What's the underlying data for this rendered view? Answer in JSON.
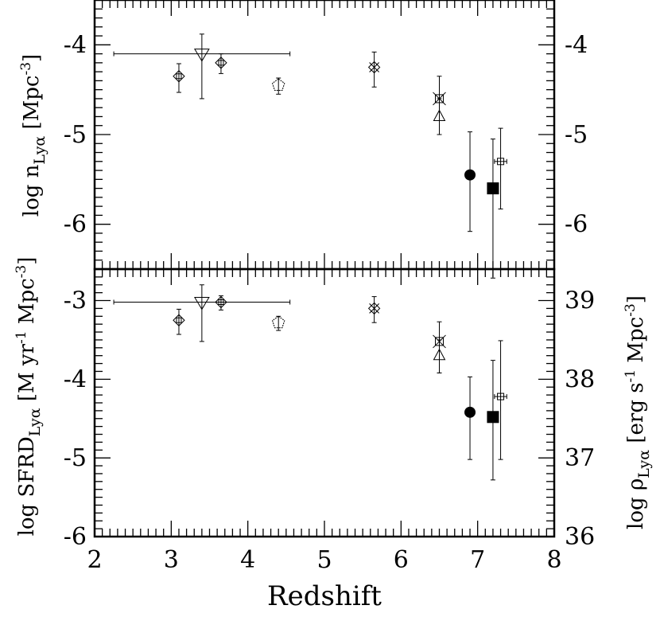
{
  "chart_data": [
    {
      "panel": "top",
      "type": "scatter",
      "xlim": [
        2,
        8
      ],
      "ylim": [
        -6.5,
        -3.5
      ],
      "yticks": [
        "-6",
        "-5",
        "-4"
      ],
      "ylabel": {
        "main": "log n",
        "sub": "Lyα",
        "unit": "[Mpc",
        "sup": "-3",
        "close": "]"
      },
      "right_ticks": [
        "-6",
        "-5",
        "-4"
      ],
      "points": [
        {
          "x": 3.1,
          "y": -4.35,
          "yerr": [
            0.18,
            0.14
          ],
          "marker": "diamond-square"
        },
        {
          "x": 3.4,
          "y": -4.1,
          "yerr": [
            0.5,
            0.22
          ],
          "xerr": [
            1.15,
            1.15
          ],
          "marker": "triangle-down"
        },
        {
          "x": 3.65,
          "y": -4.2,
          "yerr": [
            0.12,
            0.1
          ],
          "marker": "diamond-square"
        },
        {
          "x": 4.4,
          "y": -4.45,
          "yerr": [
            0.1,
            0.08
          ],
          "marker": "pentagon"
        },
        {
          "x": 5.65,
          "y": -4.25,
          "yerr": [
            0.22,
            0.17
          ],
          "marker": "diamond-cross"
        },
        {
          "x": 6.5,
          "y": -4.6,
          "yerr": [
            0.4,
            0.25
          ],
          "marker": "cross-square"
        },
        {
          "x": 6.5,
          "y": -4.8,
          "yerr": [
            0.2,
            0.2
          ],
          "marker": "triangle-up"
        },
        {
          "x": 6.9,
          "y": -5.45,
          "yerr": [
            0.63,
            0.48
          ],
          "marker": "filled-circle"
        },
        {
          "x": 7.2,
          "y": -5.6,
          "yerr": [
            1.0,
            0.55
          ],
          "marker": "filled-square"
        },
        {
          "x": 7.3,
          "y": -5.3,
          "yerr": [
            0.53,
            0.37
          ],
          "xerr": [
            0.08,
            0.08
          ],
          "marker": "small-square"
        }
      ]
    },
    {
      "panel": "bottom",
      "type": "scatter",
      "xlim": [
        2,
        8
      ],
      "ylim": [
        -6,
        -2.6
      ],
      "yticks": [
        "-6",
        "-5",
        "-4",
        "-3"
      ],
      "ylabel": {
        "main": "log SFRD",
        "sub": "Lyα",
        "unit": "[M yr",
        "sup": "-1",
        "unit2": " Mpc",
        "sup2": "-3",
        "close": "]"
      },
      "right_ylim": [
        36,
        39.4
      ],
      "right_ticks": [
        "36",
        "37",
        "38",
        "39"
      ],
      "right_ylabel": {
        "main": "log ρ",
        "sub": "Lyα",
        "unit": "[erg s",
        "sup": "-1",
        "unit2": " Mpc",
        "sup2": "-3",
        "close": "]"
      },
      "xlabel": "Redshift",
      "xticks": [
        "2",
        "3",
        "4",
        "5",
        "6",
        "7",
        "8"
      ],
      "points": [
        {
          "x": 3.1,
          "y": -3.25,
          "yerr": [
            0.18,
            0.14
          ],
          "marker": "diamond-square"
        },
        {
          "x": 3.4,
          "y": -3.02,
          "yerr": [
            0.5,
            0.22
          ],
          "xerr": [
            1.15,
            1.15
          ],
          "marker": "triangle-down"
        },
        {
          "x": 3.65,
          "y": -3.02,
          "yerr": [
            0.1,
            0.08
          ],
          "marker": "diamond-square"
        },
        {
          "x": 4.4,
          "y": -3.28,
          "yerr": [
            0.1,
            0.08
          ],
          "marker": "pentagon"
        },
        {
          "x": 5.65,
          "y": -3.1,
          "yerr": [
            0.18,
            0.15
          ],
          "marker": "diamond-cross"
        },
        {
          "x": 6.5,
          "y": -3.52,
          "yerr": [
            0.4,
            0.25
          ],
          "marker": "cross-square"
        },
        {
          "x": 6.5,
          "y": -3.7,
          "yerr": [
            0.22,
            0.2
          ],
          "marker": "triangle-up"
        },
        {
          "x": 6.9,
          "y": -4.42,
          "yerr": [
            0.6,
            0.45
          ],
          "marker": "filled-circle"
        },
        {
          "x": 7.2,
          "y": -4.48,
          "yerr": [
            0.8,
            0.72
          ],
          "marker": "filled-square"
        },
        {
          "x": 7.3,
          "y": -4.22,
          "yerr": [
            0.8,
            0.71
          ],
          "xerr": [
            0.08,
            0.08
          ],
          "marker": "small-square"
        }
      ]
    }
  ]
}
